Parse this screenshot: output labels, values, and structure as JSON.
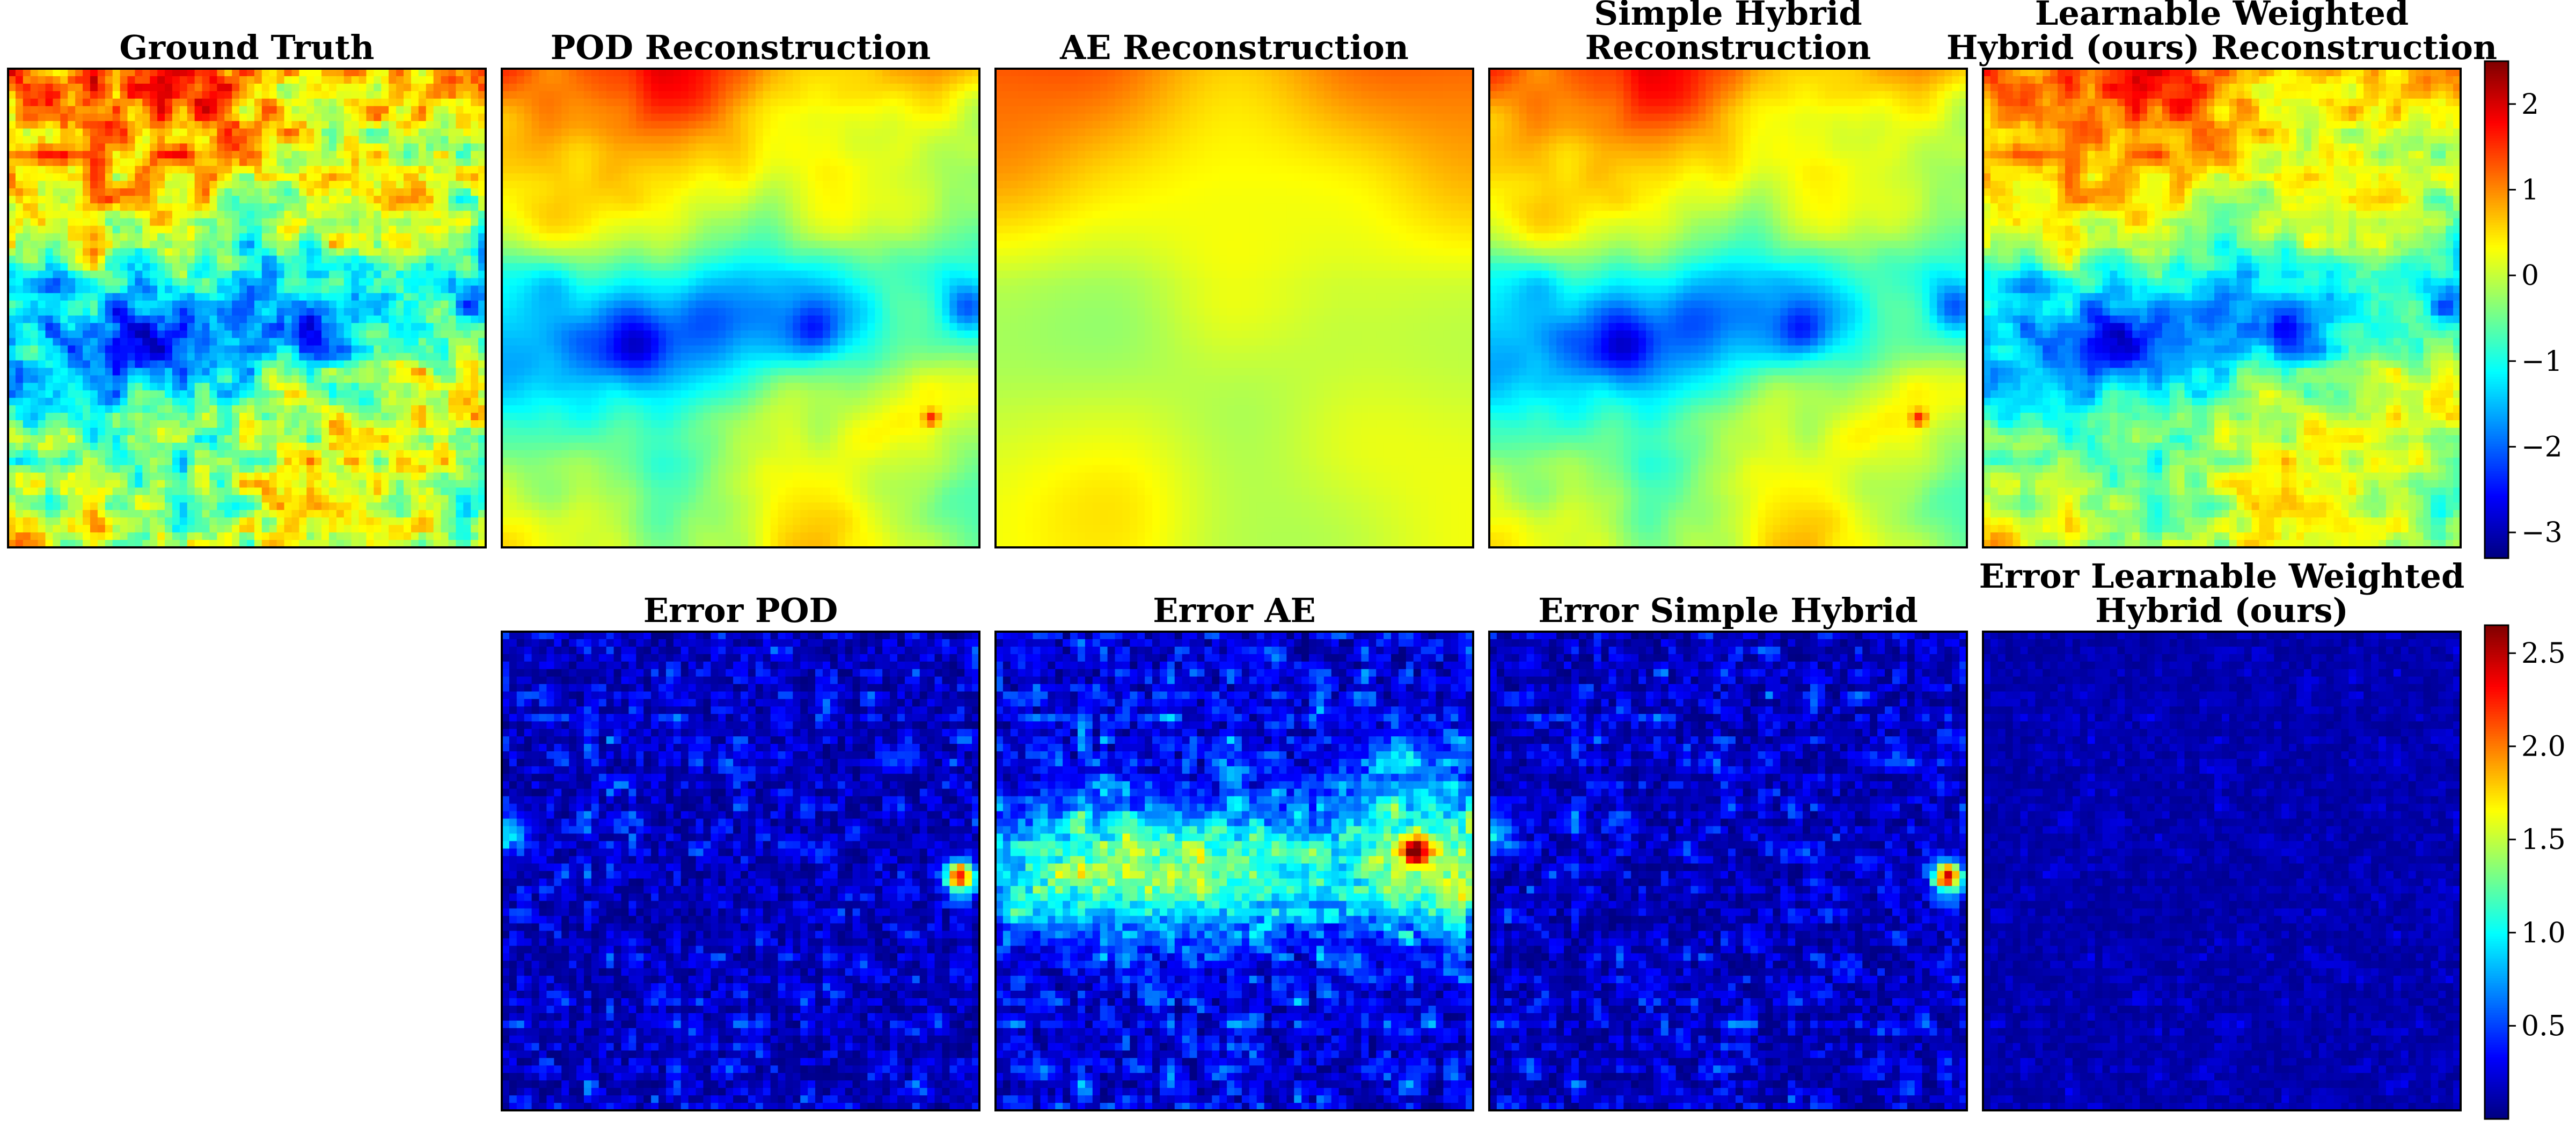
{
  "chart_data": [
    {
      "type": "heatmap",
      "title": "Ground Truth",
      "row": "reconstruction",
      "pattern": "truth",
      "grid": "64x64",
      "colormap": "jet",
      "colorbar_range": [
        -3.3,
        2.5
      ]
    },
    {
      "type": "heatmap",
      "title": "POD Reconstruction",
      "row": "reconstruction",
      "pattern": "pod",
      "grid": "64x64",
      "colormap": "jet",
      "colorbar_range": [
        -3.3,
        2.5
      ]
    },
    {
      "type": "heatmap",
      "title": "AE Reconstruction",
      "row": "reconstruction",
      "pattern": "ae",
      "grid": "64x64",
      "colormap": "jet",
      "colorbar_range": [
        -3.3,
        2.5
      ]
    },
    {
      "type": "heatmap",
      "title": [
        "Simple Hybrid",
        "Reconstruction"
      ],
      "row": "reconstruction",
      "pattern": "simple",
      "grid": "64x64",
      "colormap": "jet",
      "colorbar_range": [
        -3.3,
        2.5
      ]
    },
    {
      "type": "heatmap",
      "title": [
        "Learnable Weighted",
        "Hybrid (ours) Reconstruction"
      ],
      "row": "reconstruction",
      "pattern": "learnable",
      "grid": "64x64",
      "colormap": "jet",
      "colorbar_range": [
        -3.3,
        2.5
      ]
    },
    {
      "type": "heatmap",
      "title": "Error POD",
      "row": "error",
      "pattern": "err_pod",
      "grid": "64x64",
      "colormap": "jet",
      "colorbar_range": [
        0.0,
        2.65
      ]
    },
    {
      "type": "heatmap",
      "title": "Error AE",
      "row": "error",
      "pattern": "err_ae",
      "grid": "64x64",
      "colormap": "jet",
      "colorbar_range": [
        0.0,
        2.65
      ]
    },
    {
      "type": "heatmap",
      "title": "Error Simple Hybrid",
      "row": "error",
      "pattern": "err_simple",
      "grid": "64x64",
      "colormap": "jet",
      "colorbar_range": [
        0.0,
        2.65
      ]
    },
    {
      "type": "heatmap",
      "title": [
        "Error Learnable Weighted",
        "Hybrid (ours)"
      ],
      "row": "error",
      "pattern": "err_learnable",
      "grid": "64x64",
      "colormap": "jet",
      "colorbar_range": [
        0.0,
        2.65
      ]
    }
  ],
  "colorbars": {
    "reconstruction": {
      "ticks": [
        2,
        1,
        0,
        -1,
        -2,
        -3
      ],
      "tick_labels": [
        "2",
        "1",
        "0",
        "−1",
        "−2",
        "−3"
      ],
      "range": [
        -3.3,
        2.5
      ]
    },
    "error": {
      "ticks": [
        2.5,
        2.0,
        1.5,
        1.0,
        0.5
      ],
      "tick_labels": [
        "2.5",
        "2.0",
        "1.5",
        "1.0",
        "0.5"
      ],
      "range": [
        0.0,
        2.65
      ]
    }
  },
  "colors": {
    "frame": "#000000",
    "background": "#ffffff"
  }
}
